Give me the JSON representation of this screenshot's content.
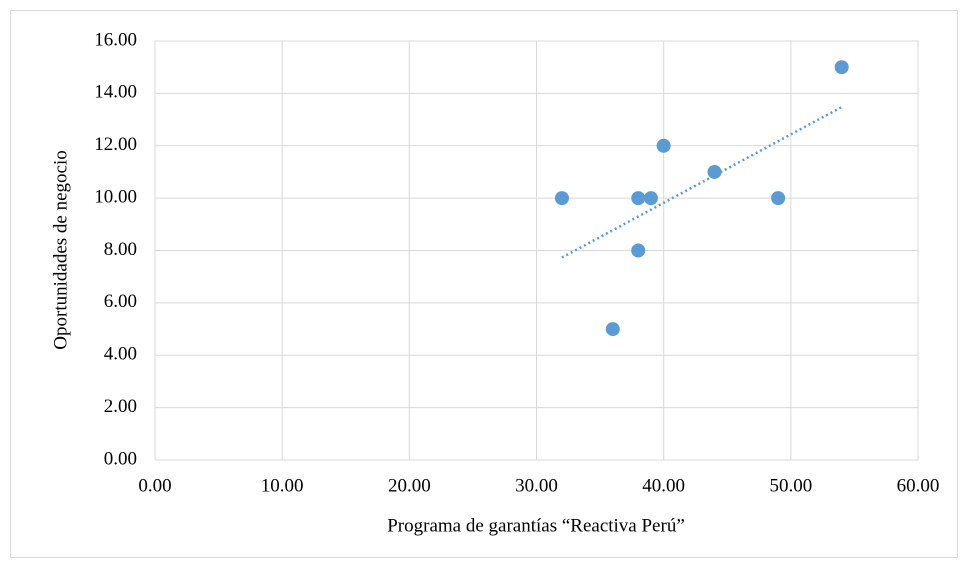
{
  "chart_data": {
    "type": "scatter",
    "x_label": "Programa de garantías “Reactiva Perú”",
    "y_label": "Oportunidades de negocio",
    "x": [
      32,
      36,
      38,
      38,
      39,
      40,
      44,
      49,
      54
    ],
    "values": [
      10,
      5,
      10,
      8,
      10,
      12,
      11,
      10,
      15
    ],
    "color": "#5b9bd5",
    "trendline": "linear",
    "xlim": [
      0,
      60
    ],
    "xticks": [
      {
        "value": 0,
        "label": "0.00"
      },
      {
        "value": 10,
        "label": "10.00"
      },
      {
        "value": 20,
        "label": "20.00"
      },
      {
        "value": 30,
        "label": "30.00"
      },
      {
        "value": 40,
        "label": "40.00"
      },
      {
        "value": 50,
        "label": "50.00"
      },
      {
        "value": 60,
        "label": "60.00"
      }
    ],
    "ylim": [
      0,
      16
    ],
    "yticks": [
      {
        "value": 0,
        "label": "0.00"
      },
      {
        "value": 2,
        "label": "2.00"
      },
      {
        "value": 4,
        "label": "4.00"
      },
      {
        "value": 6,
        "label": "6.00"
      },
      {
        "value": 8,
        "label": "8.00"
      },
      {
        "value": 10,
        "label": "10.00"
      },
      {
        "value": 12,
        "label": "12.00"
      },
      {
        "value": 14,
        "label": "14.00"
      },
      {
        "value": 16,
        "label": "16.00"
      }
    ],
    "grid": true
  }
}
